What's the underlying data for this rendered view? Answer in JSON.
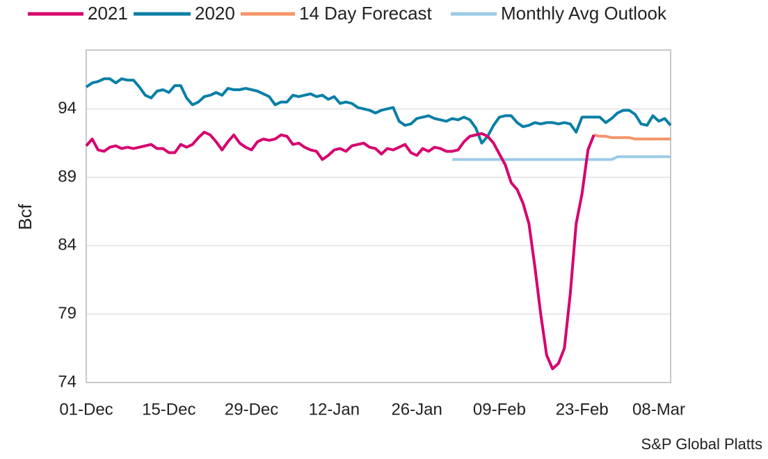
{
  "chart_data": {
    "type": "line",
    "ylabel": "Bcf",
    "source": "S&P Global Platts",
    "categories": [
      "01-Dec",
      null,
      null,
      null,
      null,
      null,
      null,
      null,
      null,
      null,
      null,
      null,
      null,
      null,
      "15-Dec",
      null,
      null,
      null,
      null,
      null,
      null,
      null,
      null,
      null,
      null,
      null,
      null,
      null,
      "29-Dec",
      null,
      null,
      null,
      null,
      null,
      null,
      null,
      null,
      null,
      null,
      null,
      null,
      null,
      "12-Jan",
      null,
      null,
      null,
      null,
      null,
      null,
      null,
      null,
      null,
      null,
      null,
      null,
      null,
      "26-Jan",
      null,
      null,
      null,
      null,
      null,
      null,
      null,
      null,
      null,
      null,
      null,
      null,
      null,
      "09-Feb",
      null,
      null,
      null,
      null,
      null,
      null,
      null,
      null,
      null,
      null,
      null,
      null,
      null,
      "23-Feb",
      null,
      null,
      null,
      null,
      null,
      null,
      null,
      null,
      null,
      null,
      null,
      null,
      "08-Mar",
      null,
      null
    ],
    "series": [
      {
        "name": "2021",
        "color": "#d6006e",
        "values": [
          91.3,
          91.8,
          91.0,
          90.9,
          91.2,
          91.3,
          91.1,
          91.2,
          91.1,
          91.2,
          91.3,
          91.4,
          91.1,
          91.1,
          90.8,
          90.8,
          91.4,
          91.2,
          91.4,
          91.9,
          92.3,
          92.1,
          91.6,
          91.0,
          91.6,
          92.1,
          91.5,
          91.2,
          91.0,
          91.6,
          91.8,
          91.7,
          91.8,
          92.1,
          92.0,
          91.4,
          91.5,
          91.2,
          91.0,
          90.9,
          90.3,
          90.6,
          91.0,
          91.1,
          90.9,
          91.3,
          91.4,
          91.5,
          91.2,
          91.1,
          90.7,
          91.1,
          91.0,
          91.2,
          91.4,
          90.8,
          90.6,
          91.1,
          90.9,
          91.2,
          91.1,
          90.9,
          90.9,
          91.0,
          91.6,
          92.0,
          92.1,
          92.2,
          92.0,
          91.5,
          90.7,
          89.9,
          88.6,
          88.1,
          87.1,
          85.6,
          82.5,
          79.0,
          76.0,
          75.0,
          75.4,
          76.5,
          80.5,
          85.6,
          87.8,
          91.0,
          92.1,
          null,
          null,
          null,
          null,
          null,
          null,
          null,
          null,
          null,
          null,
          null,
          null,
          null
        ]
      },
      {
        "name": "2020",
        "color": "#0a7fa6",
        "values": [
          95.6,
          95.9,
          96.0,
          96.2,
          96.2,
          95.9,
          96.2,
          96.1,
          96.1,
          95.6,
          95.0,
          94.8,
          95.3,
          95.4,
          95.2,
          95.7,
          95.7,
          94.8,
          94.3,
          94.5,
          94.9,
          95.0,
          95.2,
          95.0,
          95.5,
          95.4,
          95.4,
          95.5,
          95.4,
          95.3,
          95.1,
          94.9,
          94.3,
          94.5,
          94.5,
          95.0,
          94.9,
          95.0,
          95.1,
          94.9,
          95.0,
          94.7,
          94.9,
          94.4,
          94.5,
          94.4,
          94.1,
          94.0,
          93.9,
          93.7,
          93.9,
          94.0,
          94.1,
          93.1,
          92.8,
          92.9,
          93.3,
          93.4,
          93.5,
          93.3,
          93.2,
          93.1,
          93.3,
          93.2,
          93.4,
          93.2,
          92.6,
          91.5,
          92.0,
          92.8,
          93.4,
          93.5,
          93.5,
          93.0,
          92.7,
          92.8,
          93.0,
          92.9,
          93.0,
          93.0,
          92.9,
          93.0,
          92.9,
          92.3,
          93.4,
          93.4,
          93.4,
          93.4,
          93.0,
          93.3,
          93.7,
          93.9,
          93.9,
          93.6,
          92.9,
          92.8,
          93.5,
          93.1,
          93.3,
          92.8
        ]
      },
      {
        "name": "14 Day Forecast",
        "color": "#f4956a",
        "values": [
          null,
          null,
          null,
          null,
          null,
          null,
          null,
          null,
          null,
          null,
          null,
          null,
          null,
          null,
          null,
          null,
          null,
          null,
          null,
          null,
          null,
          null,
          null,
          null,
          null,
          null,
          null,
          null,
          null,
          null,
          null,
          null,
          null,
          null,
          null,
          null,
          null,
          null,
          null,
          null,
          null,
          null,
          null,
          null,
          null,
          null,
          null,
          null,
          null,
          null,
          null,
          null,
          null,
          null,
          null,
          null,
          null,
          null,
          null,
          null,
          null,
          null,
          null,
          null,
          null,
          null,
          null,
          null,
          null,
          null,
          null,
          null,
          null,
          null,
          null,
          null,
          null,
          null,
          null,
          null,
          null,
          null,
          null,
          null,
          null,
          null,
          92.1,
          92.0,
          92.0,
          91.9,
          91.9,
          91.9,
          91.9,
          91.8,
          91.8,
          91.8,
          91.8,
          91.8,
          91.8,
          91.8
        ]
      },
      {
        "name": "Monthly Avg Outlook",
        "color": "#9ccbe6",
        "values": [
          null,
          null,
          null,
          null,
          null,
          null,
          null,
          null,
          null,
          null,
          null,
          null,
          null,
          null,
          null,
          null,
          null,
          null,
          null,
          null,
          null,
          null,
          null,
          null,
          null,
          null,
          null,
          null,
          null,
          null,
          null,
          null,
          null,
          null,
          null,
          null,
          null,
          null,
          null,
          null,
          null,
          null,
          null,
          null,
          null,
          null,
          null,
          null,
          null,
          null,
          null,
          null,
          null,
          null,
          null,
          null,
          null,
          null,
          null,
          null,
          null,
          null,
          90.3,
          90.3,
          90.3,
          90.3,
          90.3,
          90.3,
          90.3,
          90.3,
          90.3,
          90.3,
          90.3,
          90.3,
          90.3,
          90.3,
          90.3,
          90.3,
          90.3,
          90.3,
          90.3,
          90.3,
          90.3,
          90.3,
          90.3,
          90.3,
          90.3,
          90.3,
          90.3,
          90.3,
          90.5,
          90.5,
          90.5,
          90.5,
          90.5,
          90.5,
          90.5,
          90.5,
          90.5,
          90.5
        ]
      }
    ],
    "ylim": [
      74,
      98.3
    ],
    "yticks": [
      74,
      79,
      84,
      89,
      94
    ],
    "grid": true,
    "legend": "top"
  }
}
